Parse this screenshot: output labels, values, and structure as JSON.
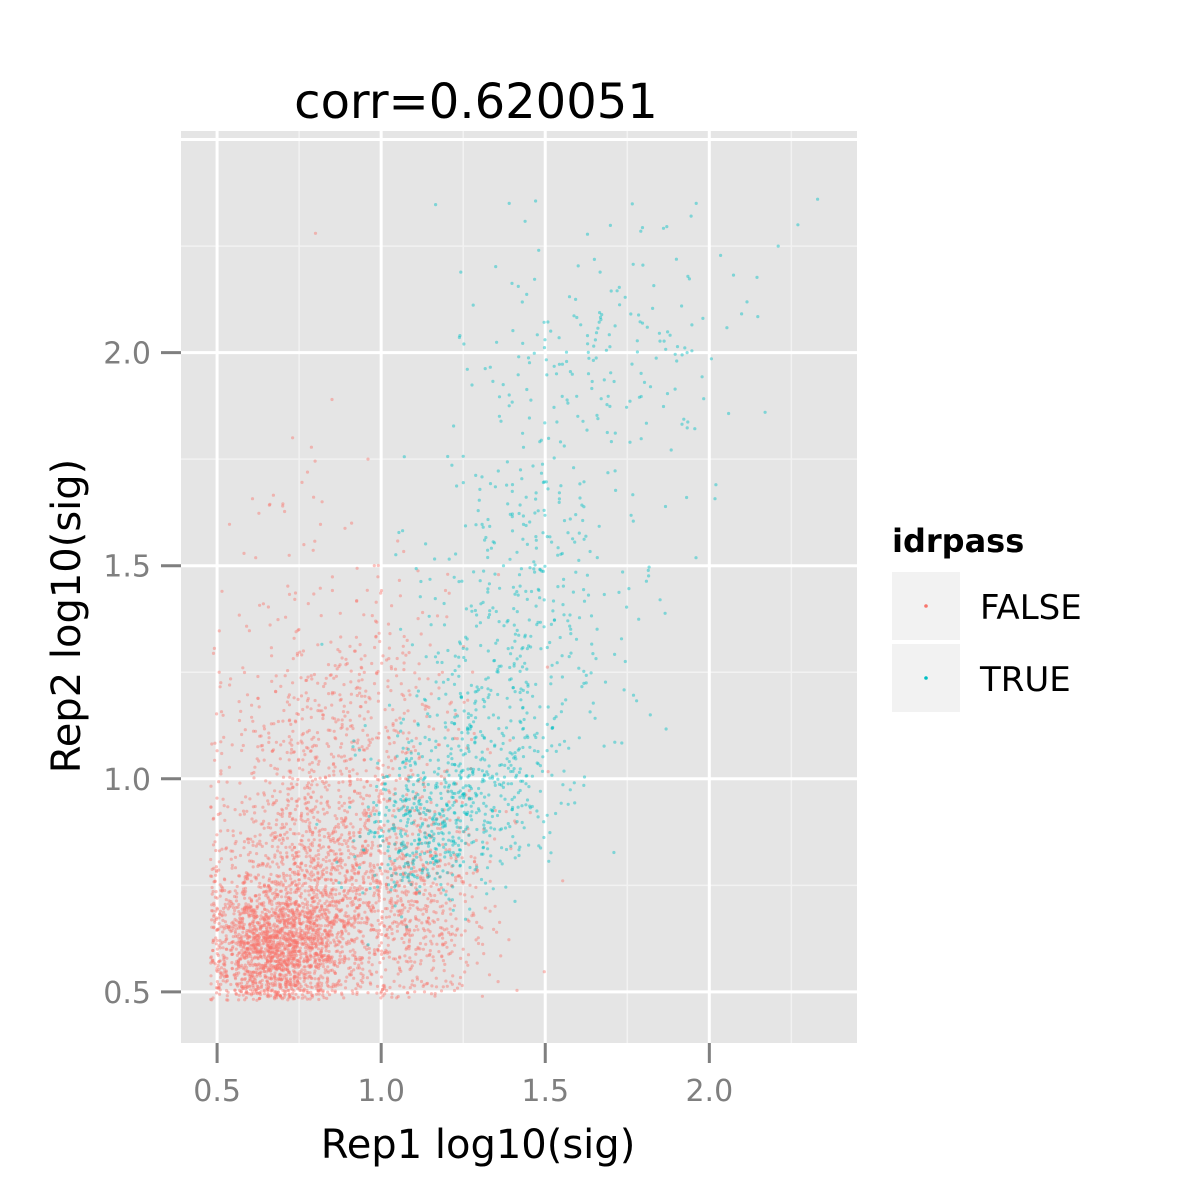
{
  "chart_data": {
    "type": "scatter",
    "title": "corr=0.620051",
    "xlabel": "Rep1 log10(sig)",
    "ylabel": "Rep2 log10(sig)",
    "xlim": [
      0.39,
      2.45
    ],
    "ylim": [
      0.38,
      2.52
    ],
    "x_ticks": [
      0.5,
      1.0,
      1.5,
      2.0
    ],
    "y_ticks": [
      0.5,
      1.0,
      1.5,
      2.0
    ],
    "x_tick_labels": [
      "0.5",
      "1.0",
      "1.5",
      "2.0"
    ],
    "y_tick_labels": [
      "0.5",
      "1.0",
      "1.5",
      "2.0"
    ],
    "grid": true,
    "panel_background": "#e5e5e5",
    "legend": {
      "title": "idrpass",
      "position": "right",
      "entries": [
        {
          "label": "FALSE",
          "color": "#f8766d"
        },
        {
          "label": "TRUE",
          "color": "#00bfc4"
        }
      ]
    },
    "series": [
      {
        "name": "FALSE",
        "color": "#f8766d",
        "clusters": [
          {
            "cx": 0.68,
            "cy": 0.6,
            "sx": 0.1,
            "sy": 0.07,
            "n": 1500
          },
          {
            "cx": 0.8,
            "cy": 0.72,
            "sx": 0.16,
            "sy": 0.13,
            "n": 1100
          },
          {
            "cx": 0.95,
            "cy": 0.85,
            "sx": 0.2,
            "sy": 0.18,
            "n": 500
          },
          {
            "cx": 1.12,
            "cy": 0.7,
            "sx": 0.1,
            "sy": 0.11,
            "n": 350
          },
          {
            "cx": 0.75,
            "cy": 1.05,
            "sx": 0.14,
            "sy": 0.17,
            "n": 350
          },
          {
            "cx": 1.0,
            "cy": 1.2,
            "sx": 0.13,
            "sy": 0.16,
            "n": 200
          },
          {
            "cx": 0.7,
            "cy": 1.45,
            "sx": 0.15,
            "sy": 0.2,
            "n": 40
          }
        ],
        "points": [
          {
            "x": 0.8,
            "y": 2.28
          },
          {
            "x": 0.73,
            "y": 1.8
          },
          {
            "x": 0.85,
            "y": 1.89
          },
          {
            "x": 0.82,
            "y": 1.65
          },
          {
            "x": 0.7,
            "y": 1.64
          },
          {
            "x": 0.96,
            "y": 1.75
          },
          {
            "x": 1.2,
            "y": 1.38
          },
          {
            "x": 1.33,
            "y": 0.54
          },
          {
            "x": 1.25,
            "y": 0.6
          },
          {
            "x": 0.49,
            "y": 0.79
          },
          {
            "x": 0.5,
            "y": 0.72
          },
          {
            "x": 0.91,
            "y": 1.6
          }
        ]
      },
      {
        "name": "TRUE",
        "color": "#00bfc4",
        "clusters": [
          {
            "cx": 1.1,
            "cy": 0.87,
            "sx": 0.09,
            "sy": 0.09,
            "n": 260
          },
          {
            "cx": 1.26,
            "cy": 0.96,
            "sx": 0.12,
            "sy": 0.1,
            "n": 330
          },
          {
            "cx": 1.38,
            "cy": 1.22,
            "sx": 0.15,
            "sy": 0.18,
            "n": 300
          },
          {
            "cx": 1.48,
            "cy": 1.55,
            "sx": 0.17,
            "sy": 0.22,
            "n": 220
          },
          {
            "cx": 1.68,
            "cy": 1.98,
            "sx": 0.2,
            "sy": 0.17,
            "n": 170
          }
        ],
        "points": [
          {
            "x": 1.39,
            "y": 2.35
          },
          {
            "x": 1.96,
            "y": 2.35
          },
          {
            "x": 2.33,
            "y": 2.36
          },
          {
            "x": 2.27,
            "y": 2.3
          },
          {
            "x": 2.21,
            "y": 2.25
          },
          {
            "x": 2.17,
            "y": 1.86
          },
          {
            "x": 2.02,
            "y": 1.69
          },
          {
            "x": 1.85,
            "y": 1.42
          },
          {
            "x": 1.82,
            "y": 1.15
          },
          {
            "x": 1.57,
            "y": 0.94
          },
          {
            "x": 1.42,
            "y": 0.82
          },
          {
            "x": 1.18,
            "y": 0.77
          },
          {
            "x": 1.24,
            "y": 2.04
          },
          {
            "x": 1.48,
            "y": 2.24
          }
        ]
      }
    ]
  }
}
